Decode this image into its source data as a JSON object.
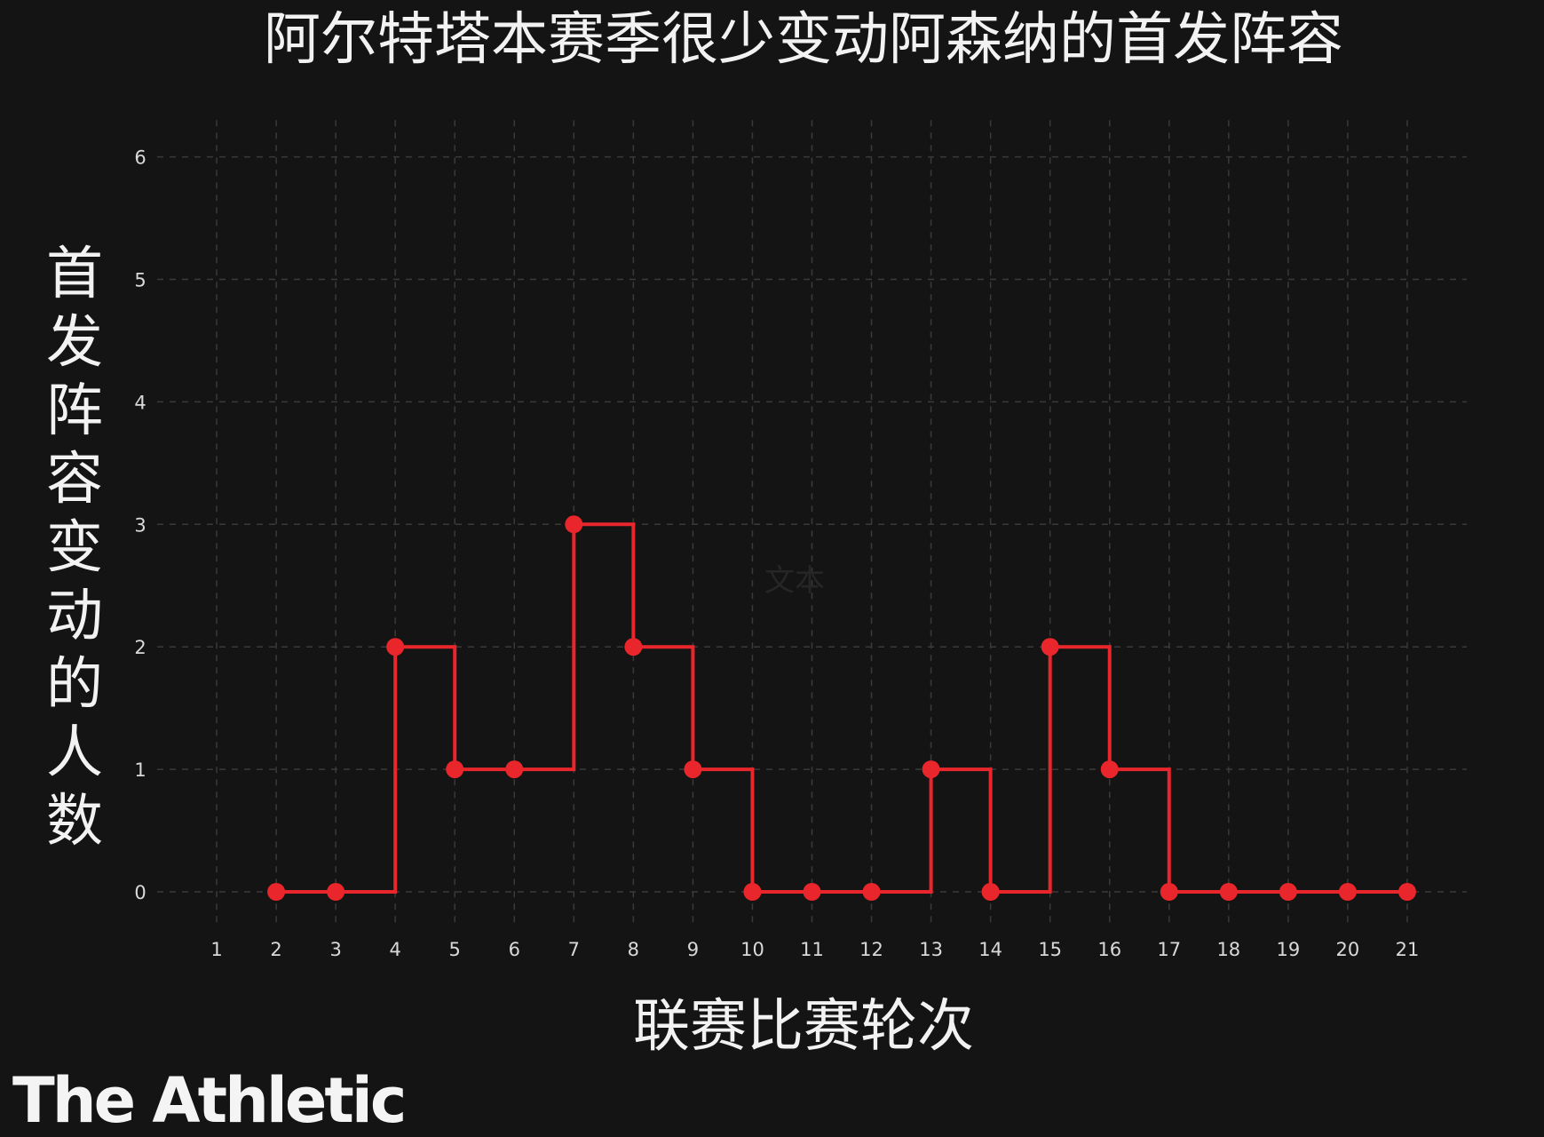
{
  "chart_data": {
    "type": "line",
    "step": true,
    "title": "阿尔特塔本赛季很少变动阿森纳的首发阵容",
    "xlabel": "联赛比赛轮次",
    "ylabel": "首发阵容变动的人数",
    "x_ticks": [
      "1",
      "2",
      "3",
      "4",
      "5",
      "6",
      "7",
      "8",
      "9",
      "10",
      "11",
      "12",
      "13",
      "14",
      "15",
      "16",
      "17",
      "18",
      "19",
      "20",
      "21"
    ],
    "y_ticks": [
      "0",
      "1",
      "2",
      "3",
      "4",
      "5",
      "6"
    ],
    "xlim": [
      0,
      22
    ],
    "ylim": [
      0,
      6.3
    ],
    "grid": true,
    "series": [
      {
        "x": [
          2,
          3,
          4,
          5,
          6,
          7,
          8,
          9,
          10,
          11,
          12,
          13,
          14,
          15,
          16,
          17,
          18,
          19,
          20,
          21
        ],
        "y": [
          0,
          0,
          2,
          1,
          1,
          3,
          2,
          1,
          0,
          0,
          0,
          1,
          0,
          2,
          1,
          0,
          0,
          0,
          0,
          0
        ],
        "color": "#e8262b"
      }
    ],
    "background": "#141414"
  },
  "watermark": "文本",
  "brand": {
    "text": "The Athletic"
  }
}
